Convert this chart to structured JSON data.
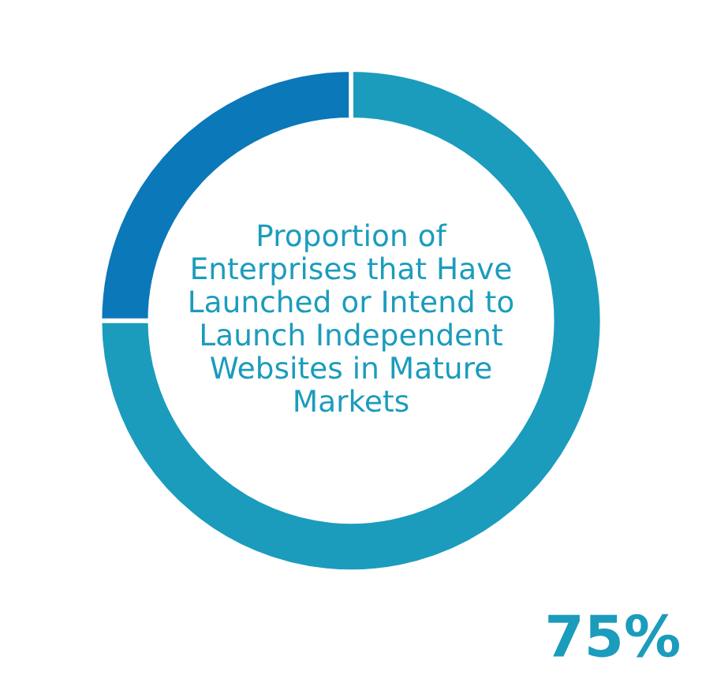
{
  "chart_data": {
    "type": "donut",
    "title": "Proportion of\nEnterprises that Have\nLaunched or Intend to\nLaunch Independent\nWebsites in Mature\nMarkets",
    "categories": [
      null,
      null
    ],
    "values": [
      75,
      25
    ],
    "colors": [
      "#1b9cbc",
      "#0b78b9"
    ],
    "value_labels": [
      "75%",
      null
    ],
    "legend": false
  }
}
